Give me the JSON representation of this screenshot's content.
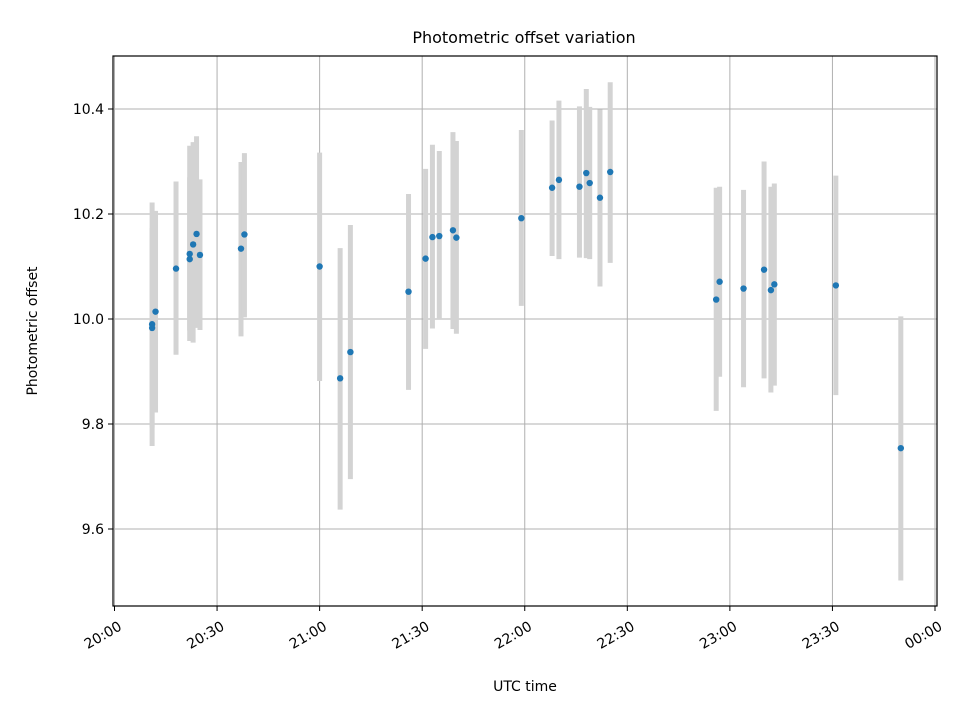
{
  "chart_data": {
    "type": "scatter",
    "title": "Photometric offset variation",
    "xlabel": "UTC time",
    "ylabel": "Photometric offset",
    "x_ticks": [
      "20:00",
      "20:30",
      "21:00",
      "21:30",
      "22:00",
      "22:30",
      "23:00",
      "23:30",
      "00:00"
    ],
    "y_ticks": [
      "9.6",
      "9.8",
      "10.0",
      "10.2",
      "10.4"
    ],
    "xlim": [
      "20:00",
      "00:00"
    ],
    "ylim": [
      9.45,
      10.5
    ],
    "grid": true,
    "colors": {
      "point": "#1f77b4",
      "errorbar": "#d3d3d3",
      "grid": "#b0b0b0"
    },
    "points": [
      {
        "x": "20:11",
        "y": 9.983,
        "lo": 9.793,
        "hi": 10.173
      },
      {
        "x": "20:11",
        "y": 9.99,
        "lo": 9.758,
        "hi": 10.222
      },
      {
        "x": "20:12",
        "y": 10.014,
        "lo": 9.822,
        "hi": 10.206
      },
      {
        "x": "20:18",
        "y": 10.096,
        "lo": 9.932,
        "hi": 10.262
      },
      {
        "x": "20:22",
        "y": 10.124,
        "lo": 9.978,
        "hi": 10.27
      },
      {
        "x": "20:22",
        "y": 10.114,
        "lo": 9.958,
        "hi": 10.33
      },
      {
        "x": "20:23",
        "y": 10.142,
        "lo": 9.955,
        "hi": 10.337
      },
      {
        "x": "20:24",
        "y": 10.162,
        "lo": 9.983,
        "hi": 10.348
      },
      {
        "x": "20:25",
        "y": 10.122,
        "lo": 9.979,
        "hi": 10.266
      },
      {
        "x": "20:37",
        "y": 10.134,
        "lo": 9.967,
        "hi": 10.299
      },
      {
        "x": "20:38",
        "y": 10.161,
        "lo": 10.003,
        "hi": 10.316
      },
      {
        "x": "21:00",
        "y": 10.1,
        "lo": 9.882,
        "hi": 10.317
      },
      {
        "x": "21:06",
        "y": 9.887,
        "lo": 9.637,
        "hi": 10.135
      },
      {
        "x": "21:09",
        "y": 9.937,
        "lo": 9.695,
        "hi": 10.179
      },
      {
        "x": "21:26",
        "y": 10.052,
        "lo": 9.865,
        "hi": 10.238
      },
      {
        "x": "21:31",
        "y": 10.115,
        "lo": 9.943,
        "hi": 10.286
      },
      {
        "x": "21:33",
        "y": 10.156,
        "lo": 9.982,
        "hi": 10.332
      },
      {
        "x": "21:35",
        "y": 10.158,
        "lo": 10.0,
        "hi": 10.32
      },
      {
        "x": "21:39",
        "y": 10.169,
        "lo": 9.981,
        "hi": 10.356
      },
      {
        "x": "21:40",
        "y": 10.155,
        "lo": 9.972,
        "hi": 10.339
      },
      {
        "x": "21:59",
        "y": 10.192,
        "lo": 10.025,
        "hi": 10.36
      },
      {
        "x": "22:08",
        "y": 10.25,
        "lo": 10.12,
        "hi": 10.378
      },
      {
        "x": "22:10",
        "y": 10.265,
        "lo": 10.114,
        "hi": 10.416
      },
      {
        "x": "22:16",
        "y": 10.252,
        "lo": 10.117,
        "hi": 10.405
      },
      {
        "x": "22:18",
        "y": 10.278,
        "lo": 10.116,
        "hi": 10.438
      },
      {
        "x": "22:19",
        "y": 10.259,
        "lo": 10.114,
        "hi": 10.404
      },
      {
        "x": "22:22",
        "y": 10.231,
        "lo": 10.062,
        "hi": 10.399
      },
      {
        "x": "22:25",
        "y": 10.28,
        "lo": 10.107,
        "hi": 10.451
      },
      {
        "x": "22:56",
        "y": 10.037,
        "lo": 9.825,
        "hi": 10.25
      },
      {
        "x": "22:57",
        "y": 10.071,
        "lo": 9.89,
        "hi": 10.252
      },
      {
        "x": "23:04",
        "y": 10.058,
        "lo": 9.87,
        "hi": 10.246
      },
      {
        "x": "23:10",
        "y": 10.094,
        "lo": 9.887,
        "hi": 10.3
      },
      {
        "x": "23:12",
        "y": 10.055,
        "lo": 9.86,
        "hi": 10.252
      },
      {
        "x": "23:13",
        "y": 10.066,
        "lo": 9.873,
        "hi": 10.258
      },
      {
        "x": "23:31",
        "y": 10.064,
        "lo": 9.855,
        "hi": 10.273
      },
      {
        "x": "23:50",
        "y": 9.754,
        "lo": 9.502,
        "hi": 10.005
      }
    ]
  }
}
